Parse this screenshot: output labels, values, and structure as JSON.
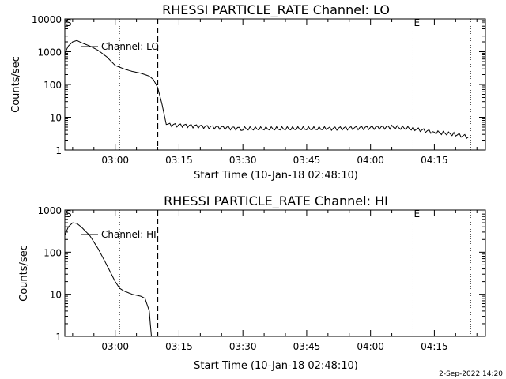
{
  "footer": {
    "timestamp": "2-Sep-2022 14:20"
  },
  "chart_data": [
    {
      "type": "line",
      "title": "RHESSI PARTICLE_RATE Channel: LO",
      "xlabel": "Start Time (10-Jan-18 02:48:10)",
      "ylabel": "Counts/sec",
      "yscale": "log",
      "ylim": [
        1,
        10000
      ],
      "xlim": [
        "02:48:10",
        "04:27:00"
      ],
      "x_ticks": [
        "03:00",
        "03:15",
        "03:30",
        "03:45",
        "04:00",
        "04:15"
      ],
      "y_ticks": [
        "1",
        "10",
        "100",
        "1000",
        "10000"
      ],
      "legend": {
        "label": "Channel: LO",
        "placement": "top-left"
      },
      "markers": [
        {
          "label": "S",
          "time": "02:48:10"
        },
        {
          "label": "E",
          "time": "04:10:00"
        }
      ],
      "vlines": [
        {
          "time": "03:01:00",
          "style": "dotted"
        },
        {
          "time": "03:10:00",
          "style": "dashed"
        },
        {
          "time": "04:10:00",
          "style": "dotted"
        },
        {
          "time": "04:23:30",
          "style": "dotted"
        }
      ],
      "series": [
        {
          "name": "Channel: LO",
          "x": [
            "02:48:10",
            "02:49:00",
            "02:50:00",
            "02:51:00",
            "02:52:00",
            "02:54:00",
            "02:56:00",
            "02:58:00",
            "03:00:00",
            "03:02:00",
            "03:04:00",
            "03:06:00",
            "03:07:00",
            "03:08:00",
            "03:09:00",
            "03:10:00",
            "03:11:00",
            "03:12:00",
            "03:30:00",
            "03:50:00",
            "04:05:00",
            "04:10:00",
            "04:15:00",
            "04:20:00",
            "04:23:00"
          ],
          "y": [
            900,
            1500,
            2000,
            2200,
            1900,
            1500,
            1100,
            700,
            380,
            300,
            250,
            220,
            200,
            180,
            140,
            80,
            25,
            6,
            4.5,
            4.5,
            5,
            4.5,
            3.5,
            3,
            2.5
          ]
        }
      ]
    },
    {
      "type": "line",
      "title": "RHESSI PARTICLE_RATE Channel: HI",
      "xlabel": "Start Time (10-Jan-18 02:48:10)",
      "ylabel": "Counts/sec",
      "yscale": "log",
      "ylim": [
        1,
        1000
      ],
      "xlim": [
        "02:48:10",
        "04:27:00"
      ],
      "x_ticks": [
        "03:00",
        "03:15",
        "03:30",
        "03:45",
        "04:00",
        "04:15"
      ],
      "y_ticks": [
        "1",
        "10",
        "100",
        "1000"
      ],
      "legend": {
        "label": "Channel: HI",
        "placement": "top-left"
      },
      "markers": [
        {
          "label": "S",
          "time": "02:48:10"
        },
        {
          "label": "E",
          "time": "04:10:00"
        }
      ],
      "vlines": [
        {
          "time": "03:01:00",
          "style": "dotted"
        },
        {
          "time": "03:10:00",
          "style": "dashed"
        },
        {
          "time": "04:10:00",
          "style": "dotted"
        },
        {
          "time": "04:23:30",
          "style": "dotted"
        }
      ],
      "series": [
        {
          "name": "Channel: HI",
          "x": [
            "02:48:10",
            "02:49:00",
            "02:50:00",
            "02:51:00",
            "02:52:00",
            "02:54:00",
            "02:56:00",
            "02:58:00",
            "03:00:00",
            "03:01:00",
            "03:02:00",
            "03:04:00",
            "03:06:00",
            "03:07:00",
            "03:08:00",
            "03:08:30"
          ],
          "y": [
            250,
            400,
            500,
            480,
            400,
            250,
            120,
            50,
            20,
            14,
            12,
            10,
            9,
            8,
            4,
            1
          ]
        }
      ]
    }
  ]
}
